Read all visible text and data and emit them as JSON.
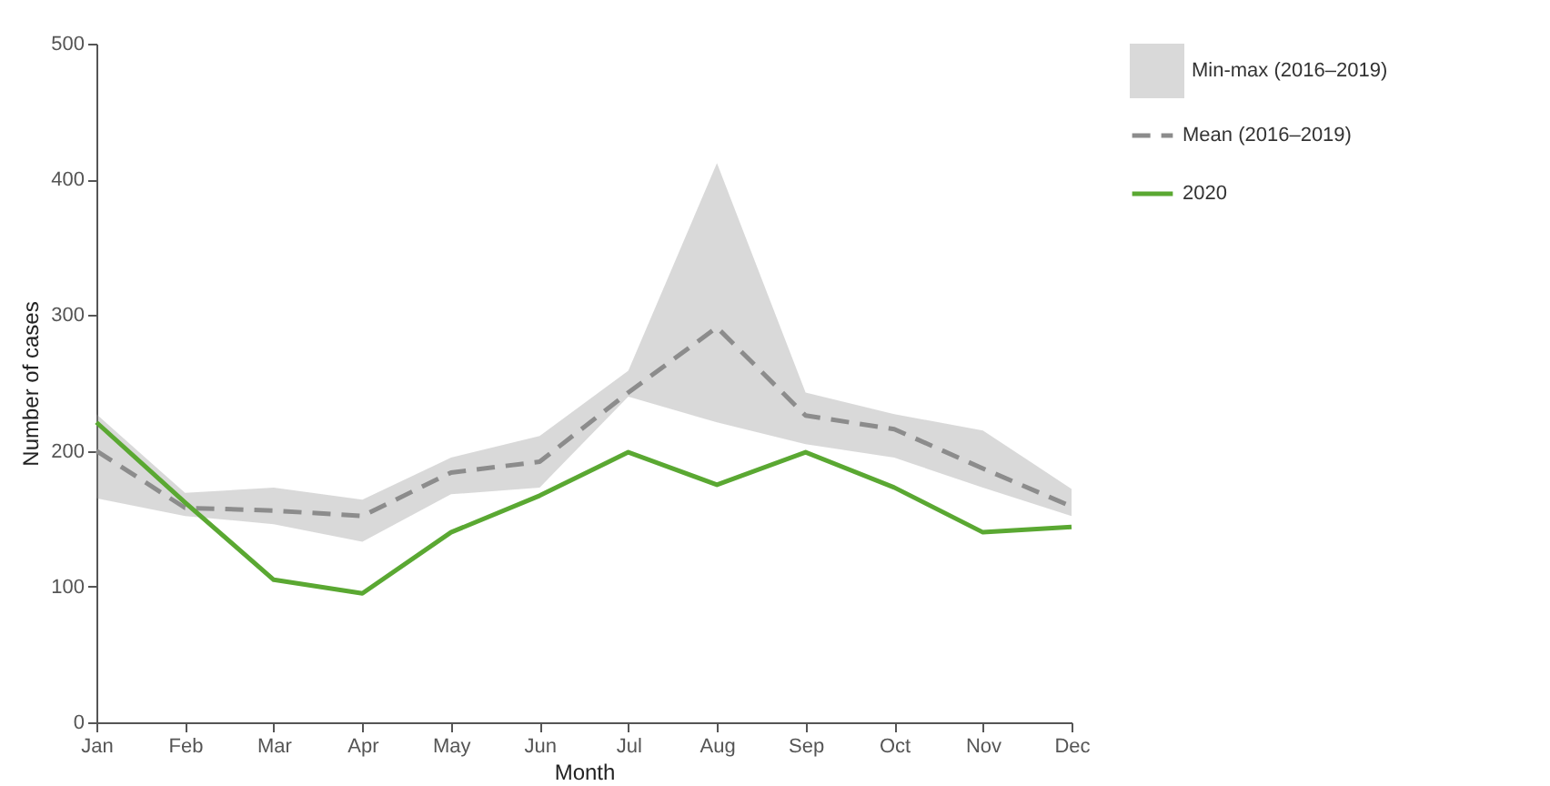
{
  "chart_data": {
    "type": "line",
    "xlabel": "Month",
    "ylabel": "Number of cases",
    "categories": [
      "Jan",
      "Feb",
      "Mar",
      "Apr",
      "May",
      "Jun",
      "Jul",
      "Aug",
      "Sep",
      "Oct",
      "Nov",
      "Dec"
    ],
    "ylim": [
      0,
      500
    ],
    "yticks": [
      0,
      100,
      200,
      300,
      400,
      500
    ],
    "grid": false,
    "legend": "right",
    "annotations": [
      "Min-max (2016–2019)"
    ],
    "series": [
      {
        "name": "Mean (2016–2019)",
        "color": "#8c8c8c",
        "line_style": "dashed",
        "values": [
          200,
          158,
          156,
          152,
          184,
          192,
          243,
          291,
          226,
          216,
          187,
          159
        ],
        "lower": [
          165,
          152,
          146,
          133,
          168,
          173,
          240,
          221,
          205,
          195,
          173,
          152
        ],
        "upper": [
          227,
          169,
          173,
          164,
          195,
          211,
          259,
          412,
          243,
          227,
          215,
          172
        ]
      },
      {
        "name": "2020",
        "color": "#5aa832",
        "line_style": "solid",
        "values": [
          221,
          162,
          105,
          95,
          140,
          167,
          199,
          175,
          199,
          173,
          140,
          144
        ]
      }
    ]
  }
}
